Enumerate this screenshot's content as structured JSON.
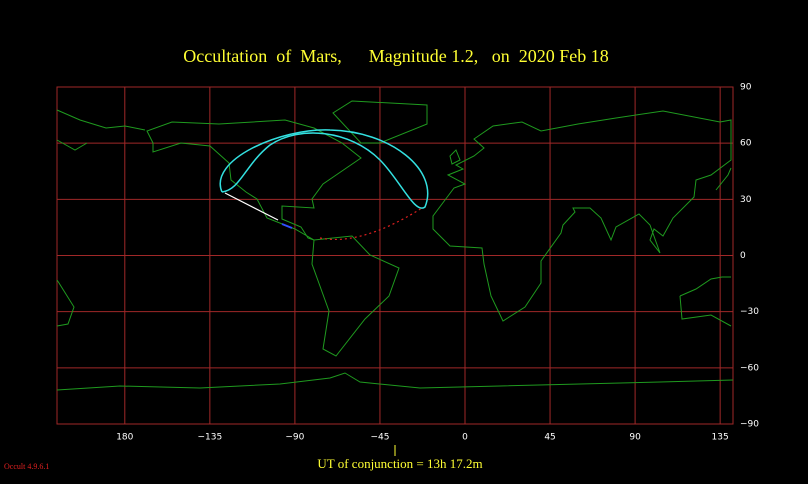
{
  "title": "Occultation  of  Mars,      Magnitude 1.2,   on  2020 Feb 18",
  "longitude_ticks": [
    180,
    {
      "value": -135,
      "label": "−135"
    },
    {
      "value": -90,
      "label": "−90"
    },
    {
      "value": -45,
      "label": "−45"
    },
    0,
    45,
    90,
    135
  ],
  "latitude_ticks": [
    90,
    60,
    30,
    0,
    {
      "value": -30,
      "label": "−30"
    },
    {
      "value": -60,
      "label": "−60"
    },
    {
      "value": -90,
      "label": "−90"
    }
  ],
  "footer": "UT of conjunction = 13h 17.2m",
  "version": "Occult 4.9.6.1"
}
